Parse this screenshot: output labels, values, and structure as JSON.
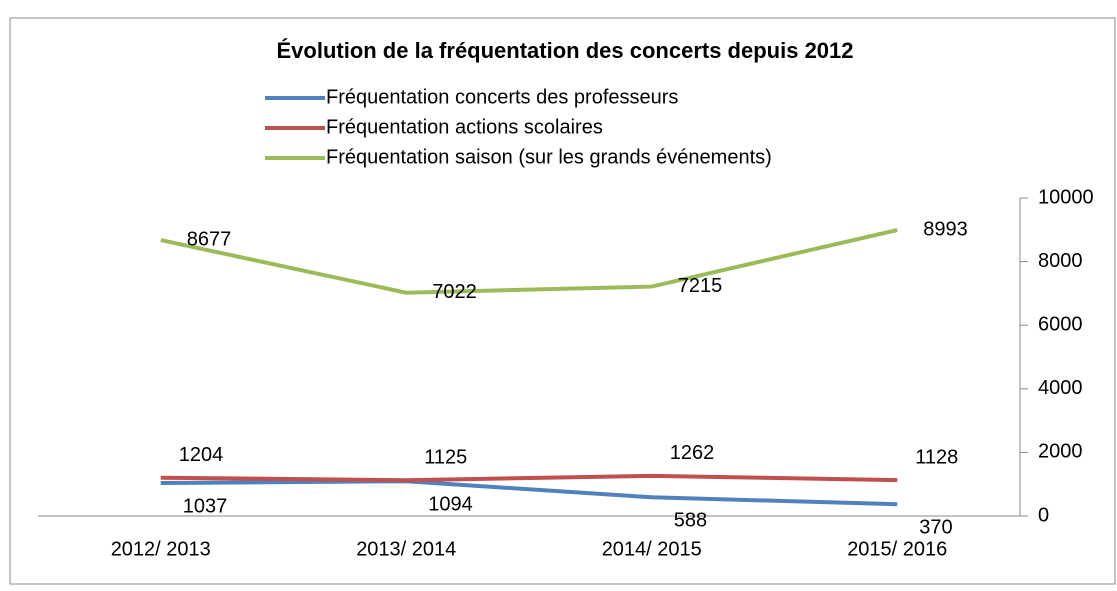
{
  "chart_data": {
    "type": "line",
    "title": "Évolution de la fréquentation des concerts depuis 2012",
    "categories": [
      "2012/ 2013",
      "2013/ 2014",
      "2014/ 2015",
      "2015/ 2016"
    ],
    "series": [
      {
        "name": "Fréquentation concerts des professeurs",
        "color": "#4f81bd",
        "values": [
          1037,
          1094,
          588,
          370
        ]
      },
      {
        "name": "Fréquentation actions scolaires",
        "color": "#c0504d",
        "values": [
          1204,
          1125,
          1262,
          1128
        ]
      },
      {
        "name": "Fréquentation saison (sur les grands événements)",
        "color": "#9bbb59",
        "values": [
          8677,
          7022,
          7215,
          8993
        ]
      }
    ],
    "ylim": [
      0,
      10000
    ],
    "yticks": [
      0,
      2000,
      4000,
      6000,
      8000,
      10000
    ],
    "y_axis_side": "right",
    "legend": "top",
    "data_labels": true
  }
}
